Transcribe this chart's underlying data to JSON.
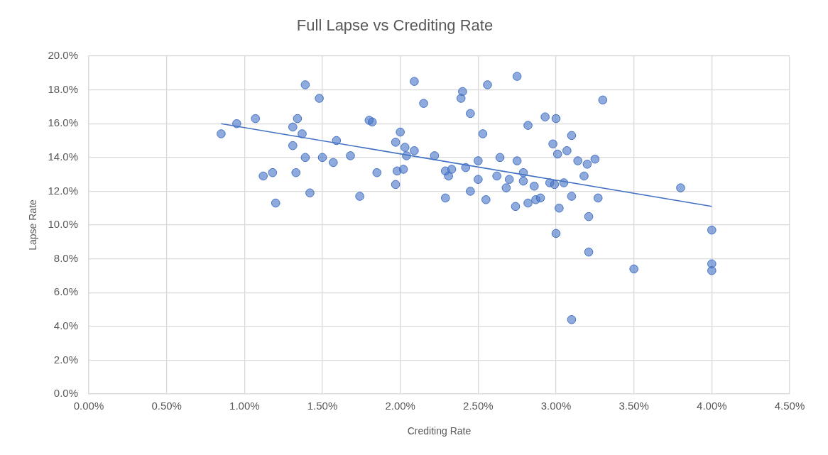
{
  "chart_data": {
    "type": "scatter",
    "title": "Full Lapse vs Crediting Rate",
    "xlabel": "Crediting Rate",
    "ylabel": "Lapse Rate",
    "xlim": [
      0,
      4.5
    ],
    "xticks": [
      {
        "value": 0,
        "label": "0.00%"
      },
      {
        "value": 0.5,
        "label": "0.50%"
      },
      {
        "value": 1,
        "label": "1.00%"
      },
      {
        "value": 1.5,
        "label": "1.50%"
      },
      {
        "value": 2,
        "label": "2.00%"
      },
      {
        "value": 2.5,
        "label": "2.50%"
      },
      {
        "value": 3,
        "label": "3.00%"
      },
      {
        "value": 3.5,
        "label": "3.50%"
      },
      {
        "value": 4,
        "label": "4.00%"
      },
      {
        "value": 4.5,
        "label": "4.50%"
      }
    ],
    "ylim": [
      0,
      20
    ],
    "yticks": [
      {
        "value": 0,
        "label": "0.0%"
      },
      {
        "value": 2,
        "label": "2.0%"
      },
      {
        "value": 4,
        "label": "4.0%"
      },
      {
        "value": 6,
        "label": "6.0%"
      },
      {
        "value": 8,
        "label": "8.0%"
      },
      {
        "value": 10,
        "label": "10.0%"
      },
      {
        "value": 12,
        "label": "12.0%"
      },
      {
        "value": 14,
        "label": "14.0%"
      },
      {
        "value": 16,
        "label": "16.0%"
      },
      {
        "value": 18,
        "label": "18.0%"
      },
      {
        "value": 20,
        "label": "20.0%"
      }
    ],
    "grid": true,
    "legend": false,
    "marker": "circle",
    "series": [
      {
        "type": "scatter",
        "color": "#4472c4",
        "x": [
          0.85,
          0.95,
          1.07,
          1.12,
          1.18,
          1.2,
          1.31,
          1.31,
          1.33,
          1.34,
          1.37,
          1.39,
          1.39,
          1.42,
          1.48,
          1.5,
          1.57,
          1.59,
          1.68,
          1.74,
          1.8,
          1.82,
          1.85,
          1.97,
          1.97,
          1.98,
          2.0,
          2.02,
          2.03,
          2.04,
          2.09,
          2.09,
          2.15,
          2.22,
          2.29,
          2.29,
          2.31,
          2.33,
          2.39,
          2.4,
          2.42,
          2.45,
          2.45,
          2.5,
          2.5,
          2.53,
          2.55,
          2.56,
          2.62,
          2.64,
          2.68,
          2.7,
          2.74,
          2.75,
          2.75,
          2.79,
          2.79,
          2.82,
          2.82,
          2.86,
          2.87,
          2.9,
          2.93,
          2.96,
          2.98,
          2.99,
          3.0,
          3.0,
          3.01,
          3.02,
          3.05,
          3.07,
          3.1,
          3.1,
          3.1,
          3.14,
          3.18,
          3.2,
          3.21,
          3.21,
          3.25,
          3.27,
          3.3,
          3.5,
          3.8,
          4.0,
          4.0,
          4.0
        ],
        "values": [
          15.4,
          16.0,
          16.3,
          12.9,
          13.1,
          11.3,
          15.8,
          14.7,
          13.1,
          16.3,
          15.4,
          18.3,
          14.0,
          11.9,
          17.5,
          14.0,
          13.7,
          15.0,
          14.1,
          11.7,
          16.2,
          16.1,
          13.1,
          14.9,
          12.4,
          13.2,
          15.5,
          13.3,
          14.6,
          14.1,
          18.5,
          14.4,
          17.2,
          14.1,
          13.2,
          11.6,
          12.9,
          13.3,
          17.5,
          17.9,
          13.4,
          16.6,
          12.0,
          13.8,
          12.7,
          15.4,
          11.5,
          18.3,
          12.9,
          14.0,
          12.2,
          12.7,
          11.1,
          18.8,
          13.8,
          13.1,
          12.6,
          15.9,
          11.3,
          12.3,
          11.5,
          11.6,
          16.4,
          12.5,
          14.8,
          12.4,
          16.3,
          9.5,
          14.2,
          11.0,
          12.5,
          14.4,
          15.3,
          11.7,
          4.4,
          13.8,
          12.9,
          13.6,
          10.5,
          8.4,
          13.9,
          11.6,
          17.4,
          7.4,
          12.2,
          9.7,
          7.7,
          7.3
        ]
      },
      {
        "type": "line",
        "color": "#4472c4",
        "marker": "none",
        "line_style": "solid",
        "x": [
          0.85,
          4.0
        ],
        "values": [
          16.0,
          11.1
        ]
      }
    ]
  }
}
